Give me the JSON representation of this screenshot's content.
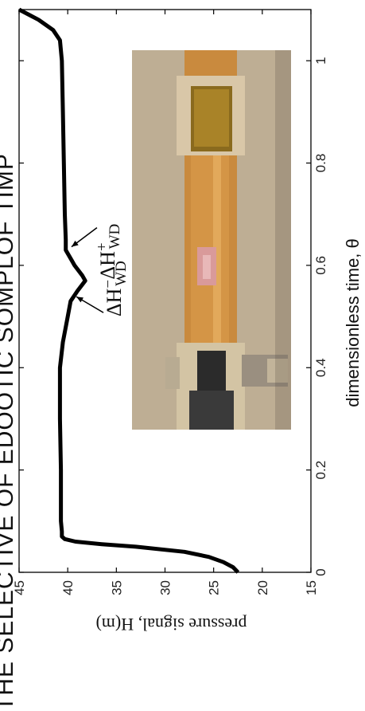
{
  "chart_data": {
    "type": "line",
    "title": "THE SELECTIVE OF EDOOTIC SOMPLOF TIMP",
    "xlabel": "dimensionless time, θ",
    "ylabel": "pressure signal, H(m)",
    "xlim": [
      0,
      1.1
    ],
    "ylim": [
      15,
      45
    ],
    "x_ticks": [
      "0",
      "0.2",
      "0.4",
      "0.6",
      "0.8",
      "1"
    ],
    "y_ticks": [
      "15",
      "20",
      "25",
      "30",
      "35",
      "40",
      "45"
    ],
    "grid": false,
    "series": [
      {
        "x": [
          0,
          0.01,
          0.02,
          0.03,
          0.04,
          0.05,
          0.055,
          0.06,
          0.065,
          0.07,
          0.08,
          0.1,
          0.2,
          0.3,
          0.4,
          0.45,
          0.5,
          0.53,
          0.55,
          0.57,
          0.58,
          0.6,
          0.61,
          0.62,
          0.63,
          0.65,
          0.7,
          0.8,
          0.9,
          1.0,
          1.04,
          1.06,
          1.08,
          1.09,
          1.1
        ],
        "y": [
          22.5,
          23.0,
          24.0,
          25.5,
          28.0,
          33.0,
          36.5,
          39.2,
          40.3,
          40.6,
          40.6,
          40.7,
          40.7,
          40.8,
          40.8,
          40.5,
          40.0,
          39.7,
          39.0,
          38.2,
          38.5,
          39.3,
          39.6,
          39.9,
          40.2,
          40.2,
          40.3,
          40.4,
          40.5,
          40.6,
          40.8,
          41.5,
          43.0,
          44.0,
          45.0
        ]
      }
    ],
    "annotations": [
      {
        "base": "ΔH",
        "sub": "WD",
        "sup": "−",
        "target_x": 0.545,
        "target_y": 39.6
      },
      {
        "base": "ΔH",
        "sub": "WD",
        "sup": "+",
        "target_x": 0.63,
        "target_y": 40.1
      }
    ],
    "inset": "photograph of cut-open pipe section with cavitation zone"
  }
}
